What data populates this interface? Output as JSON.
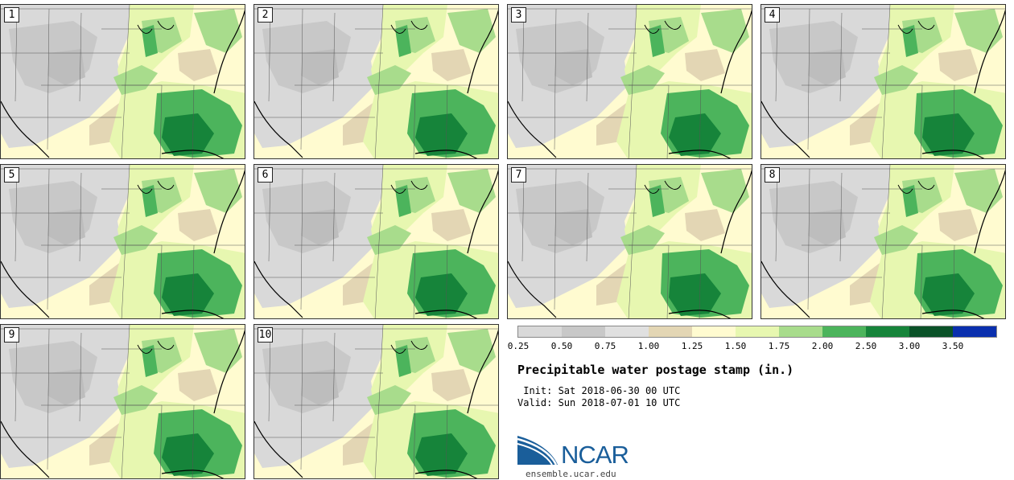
{
  "panels": [
    {
      "label": "1"
    },
    {
      "label": "2"
    },
    {
      "label": "3"
    },
    {
      "label": "4"
    },
    {
      "label": "5"
    },
    {
      "label": "6"
    },
    {
      "label": "7"
    },
    {
      "label": "8"
    },
    {
      "label": "9"
    },
    {
      "label": "10"
    }
  ],
  "legend": {
    "colors": [
      "#d9d9d9",
      "#c8c8c8",
      "#e0e0e0",
      "#e3d6b4",
      "#fffbd0",
      "#e7f7b0",
      "#a8dc8c",
      "#4cb45c",
      "#16843a",
      "#0a5228",
      "#0a2fae"
    ],
    "ticks": [
      "0.25",
      "0.50",
      "0.75",
      "1.00",
      "1.25",
      "1.50",
      "1.75",
      "2.00",
      "2.50",
      "3.00",
      "3.50"
    ]
  },
  "title": "Precipitable water postage stamp (in.)",
  "init": " Init: Sat 2018-06-30 00 UTC",
  "valid": "Valid: Sun 2018-07-01 10 UTC",
  "logo": {
    "text": "NCAR",
    "url": "ensemble.ucar.edu"
  }
}
